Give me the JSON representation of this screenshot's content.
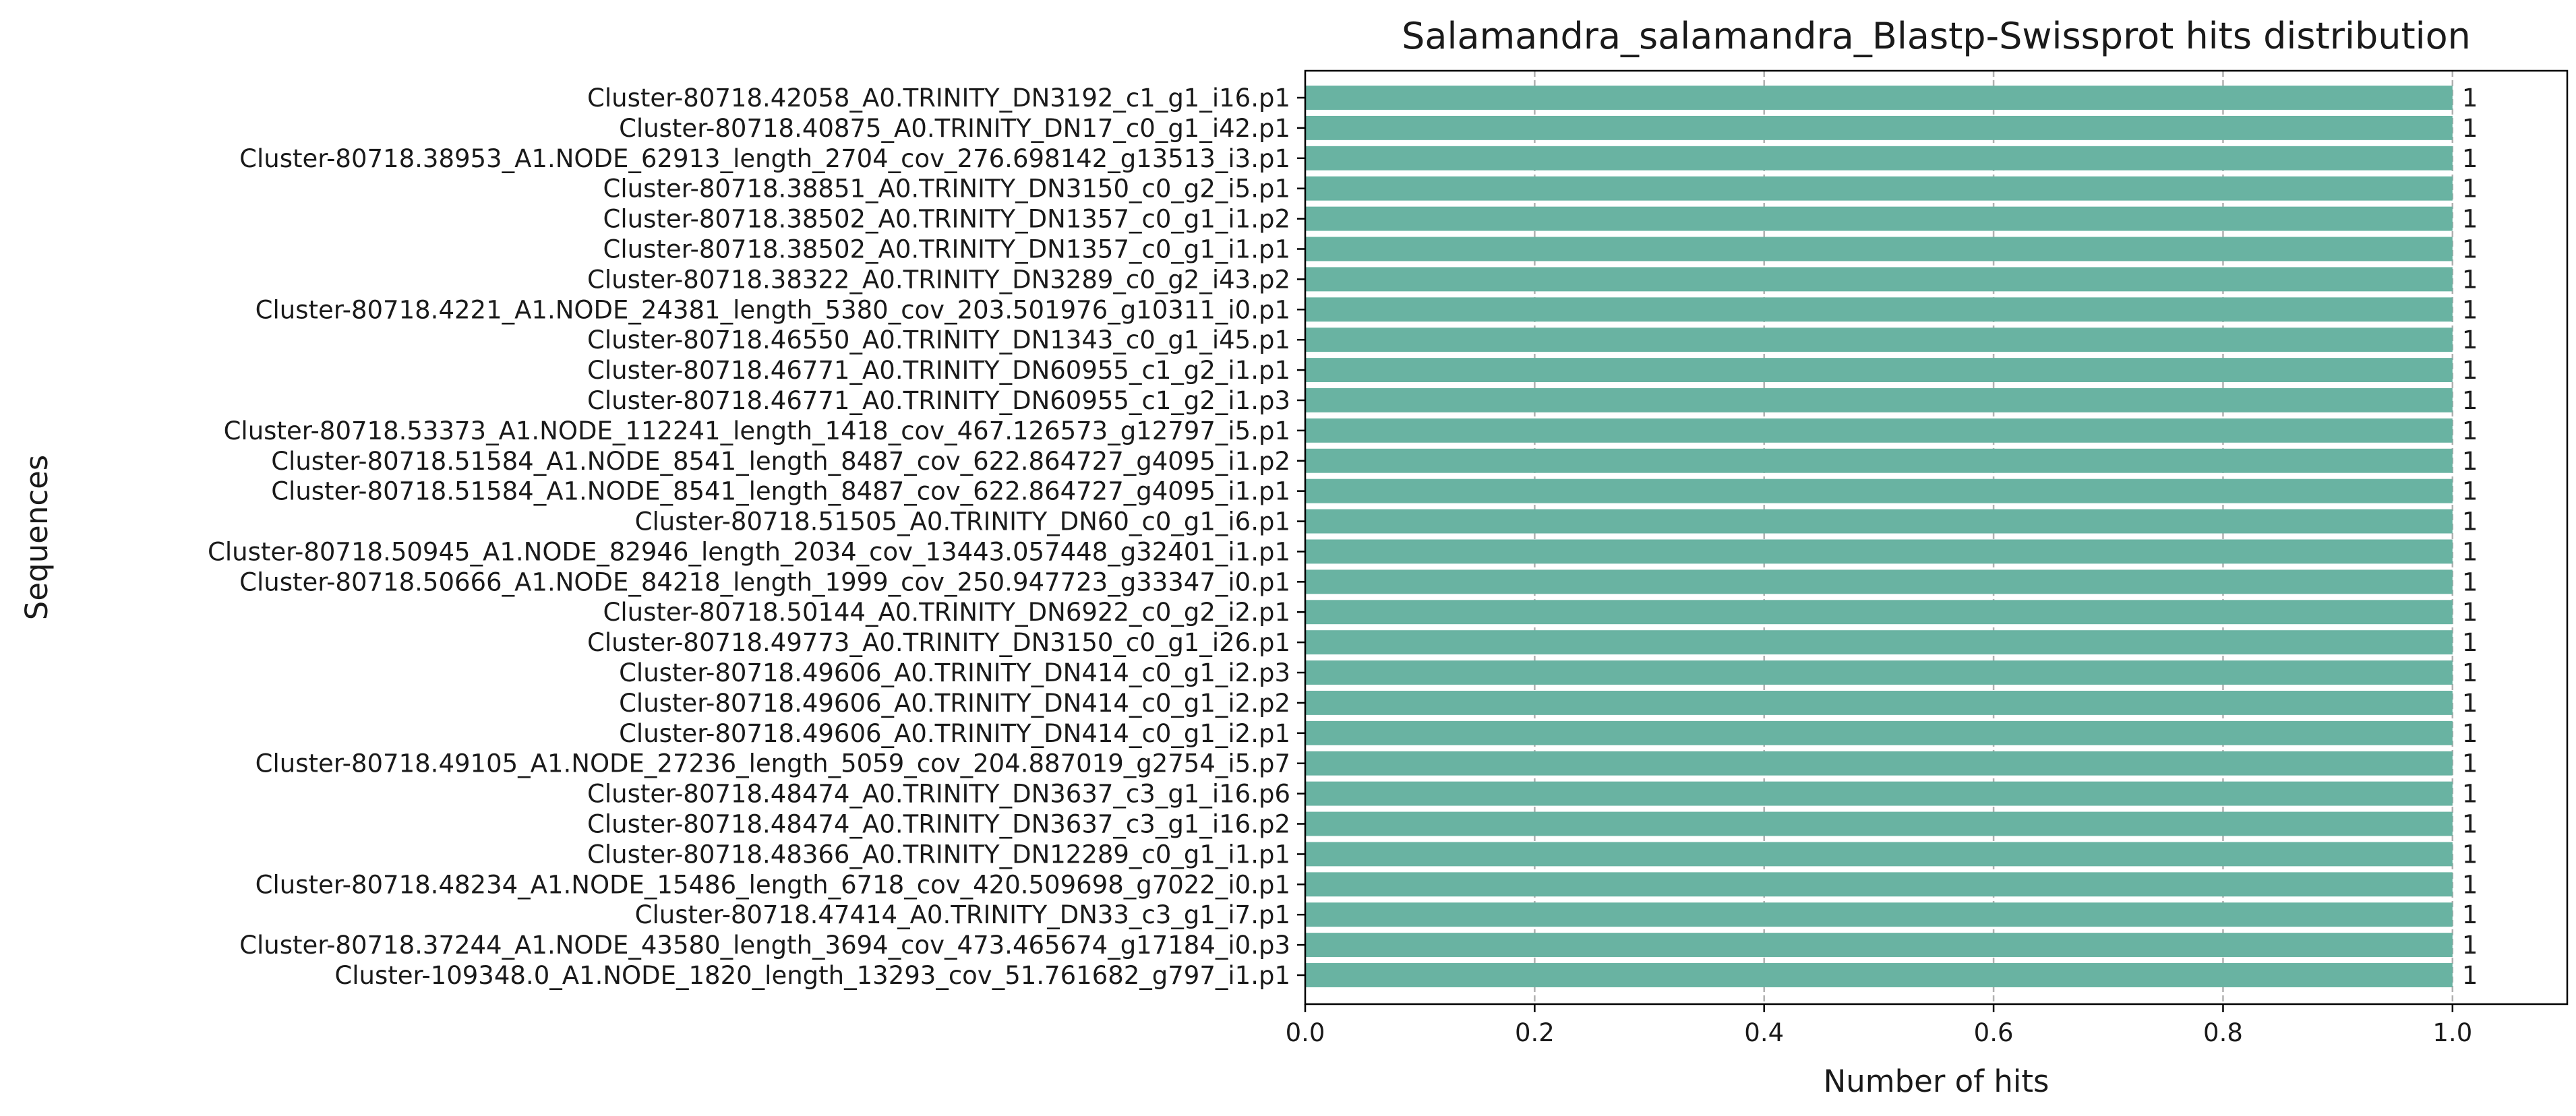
{
  "chart_data": {
    "type": "bar",
    "orientation": "horizontal",
    "title": "Salamandra_salamandra_Blastp-Swissprot hits distribution",
    "xlabel": "Number of hits",
    "ylabel": "Sequences",
    "xlim": [
      0,
      1.1
    ],
    "xticks": [
      "0.0",
      "0.2",
      "0.4",
      "0.6",
      "0.8",
      "1.0"
    ],
    "xtick_values": [
      0,
      0.2,
      0.4,
      0.6,
      0.8,
      1.0
    ],
    "grid": "x, dashed",
    "bar_color": "#69b3a2",
    "categories": [
      "Cluster-80718.42058_A0.TRINITY_DN3192_c1_g1_i16.p1",
      "Cluster-80718.40875_A0.TRINITY_DN17_c0_g1_i42.p1",
      "Cluster-80718.38953_A1.NODE_62913_length_2704_cov_276.698142_g13513_i3.p1",
      "Cluster-80718.38851_A0.TRINITY_DN3150_c0_g2_i5.p1",
      "Cluster-80718.38502_A0.TRINITY_DN1357_c0_g1_i1.p2",
      "Cluster-80718.38502_A0.TRINITY_DN1357_c0_g1_i1.p1",
      "Cluster-80718.38322_A0.TRINITY_DN3289_c0_g2_i43.p2",
      "Cluster-80718.4221_A1.NODE_24381_length_5380_cov_203.501976_g10311_i0.p1",
      "Cluster-80718.46550_A0.TRINITY_DN1343_c0_g1_i45.p1",
      "Cluster-80718.46771_A0.TRINITY_DN60955_c1_g2_i1.p1",
      "Cluster-80718.46771_A0.TRINITY_DN60955_c1_g2_i1.p3",
      "Cluster-80718.53373_A1.NODE_112241_length_1418_cov_467.126573_g12797_i5.p1",
      "Cluster-80718.51584_A1.NODE_8541_length_8487_cov_622.864727_g4095_i1.p2",
      "Cluster-80718.51584_A1.NODE_8541_length_8487_cov_622.864727_g4095_i1.p1",
      "Cluster-80718.51505_A0.TRINITY_DN60_c0_g1_i6.p1",
      "Cluster-80718.50945_A1.NODE_82946_length_2034_cov_13443.057448_g32401_i1.p1",
      "Cluster-80718.50666_A1.NODE_84218_length_1999_cov_250.947723_g33347_i0.p1",
      "Cluster-80718.50144_A0.TRINITY_DN6922_c0_g2_i2.p1",
      "Cluster-80718.49773_A0.TRINITY_DN3150_c0_g1_i26.p1",
      "Cluster-80718.49606_A0.TRINITY_DN414_c0_g1_i2.p3",
      "Cluster-80718.49606_A0.TRINITY_DN414_c0_g1_i2.p2",
      "Cluster-80718.49606_A0.TRINITY_DN414_c0_g1_i2.p1",
      "Cluster-80718.49105_A1.NODE_27236_length_5059_cov_204.887019_g2754_i5.p7",
      "Cluster-80718.48474_A0.TRINITY_DN3637_c3_g1_i16.p6",
      "Cluster-80718.48474_A0.TRINITY_DN3637_c3_g1_i16.p2",
      "Cluster-80718.48366_A0.TRINITY_DN12289_c0_g1_i1.p1",
      "Cluster-80718.48234_A1.NODE_15486_length_6718_cov_420.509698_g7022_i0.p1",
      "Cluster-80718.47414_A0.TRINITY_DN33_c3_g1_i7.p1",
      "Cluster-80718.37244_A1.NODE_43580_length_3694_cov_473.465674_g17184_i0.p3",
      "Cluster-109348.0_A1.NODE_1820_length_13293_cov_51.761682_g797_i1.p1"
    ],
    "values": [
      1,
      1,
      1,
      1,
      1,
      1,
      1,
      1,
      1,
      1,
      1,
      1,
      1,
      1,
      1,
      1,
      1,
      1,
      1,
      1,
      1,
      1,
      1,
      1,
      1,
      1,
      1,
      1,
      1,
      1
    ],
    "value_labels": [
      "1",
      "1",
      "1",
      "1",
      "1",
      "1",
      "1",
      "1",
      "1",
      "1",
      "1",
      "1",
      "1",
      "1",
      "1",
      "1",
      "1",
      "1",
      "1",
      "1",
      "1",
      "1",
      "1",
      "1",
      "1",
      "1",
      "1",
      "1",
      "1",
      "1"
    ]
  }
}
